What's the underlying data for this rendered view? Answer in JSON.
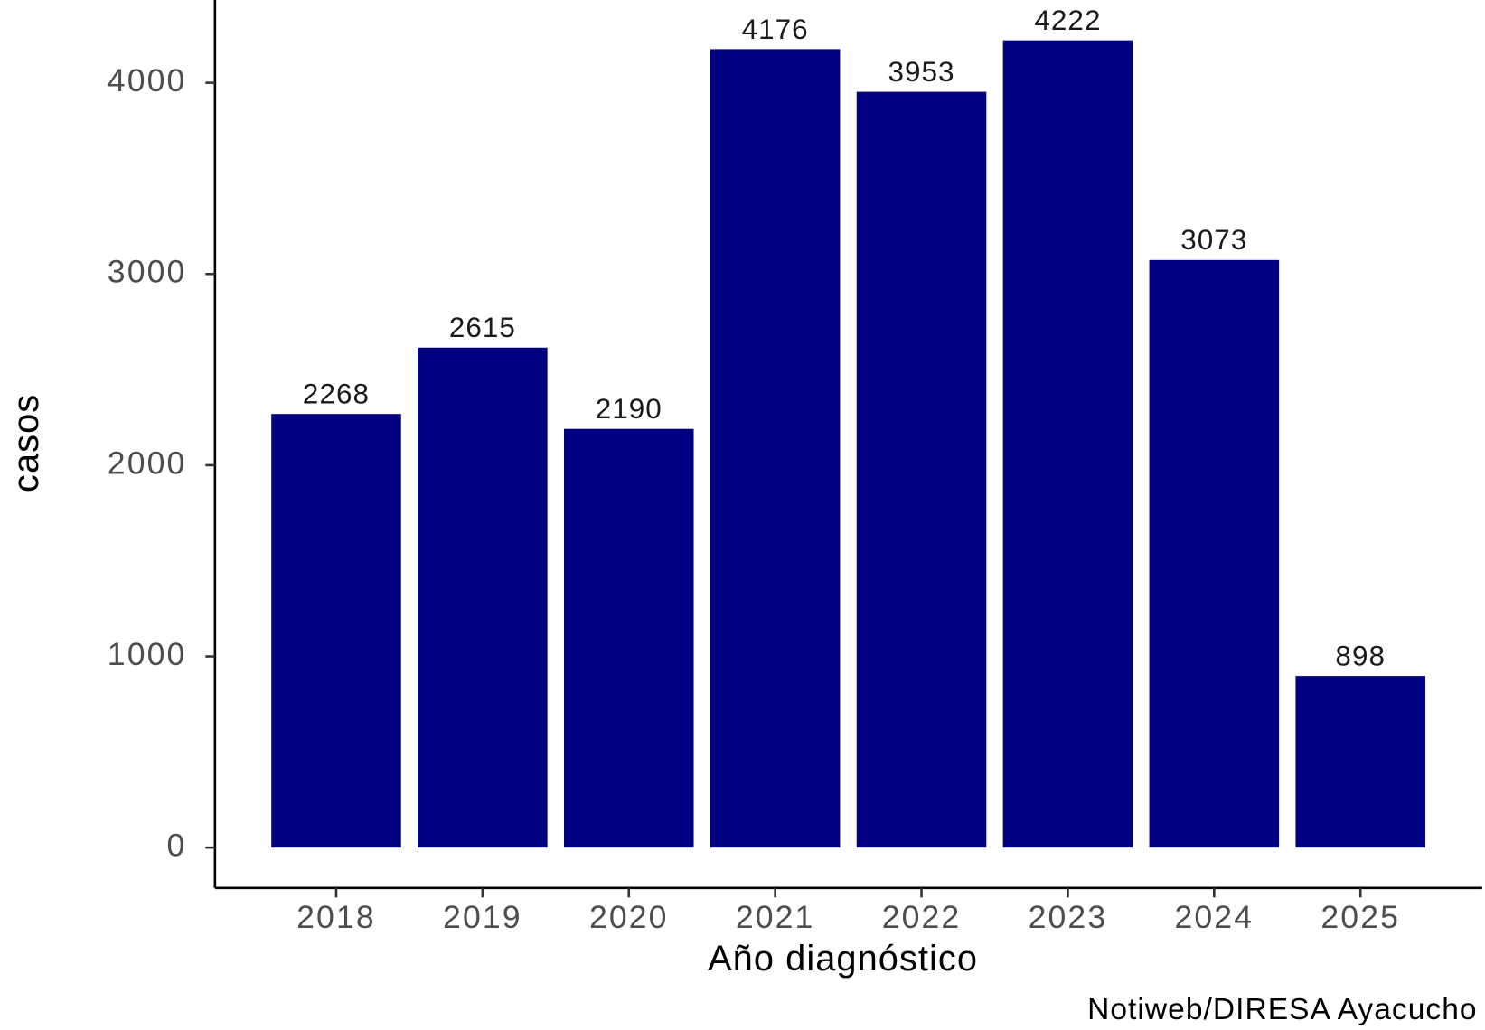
{
  "chart_data": {
    "type": "bar",
    "categories": [
      "2018",
      "2019",
      "2020",
      "2021",
      "2022",
      "2023",
      "2024",
      "2025"
    ],
    "values": [
      2268,
      2615,
      2190,
      4176,
      3953,
      4222,
      3073,
      898
    ],
    "color": "#000080",
    "xlabel": "Año diagnóstico",
    "ylabel": "casos",
    "caption": "Notiweb/DIRESA Ayacucho",
    "ylim": [
      -211,
      4433
    ],
    "yticks": [
      0,
      1000,
      2000,
      3000,
      4000
    ],
    "grid": false
  }
}
